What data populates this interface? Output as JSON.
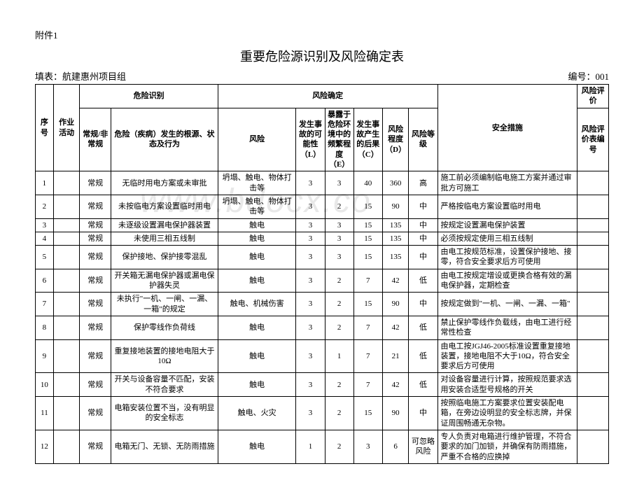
{
  "attachment": "附件1",
  "title": "重要危险源识别及风险确定表",
  "fillLabel": "填表：航建惠州项目组",
  "docNumber": "编号：001",
  "watermark": "www.bdocx.co",
  "headers": {
    "seq": "序号",
    "activity": "作业活动",
    "identification": "危险识别",
    "regular": "常规/非常规",
    "source": "危险（疾病）发生的根源、状态及行为",
    "riskDetermination": "风险确定",
    "risk": "风险",
    "l": "发生事故的可能性（L）",
    "e": "暴露于危险环境中的频繁程度（E）",
    "c": "发生事故产生的后果（C）",
    "d": "风险程度（D）",
    "level": "风险等级",
    "measure": "安全措施",
    "evaluation": "风险评价",
    "evalNum": "风险评价表编号"
  },
  "rows": [
    {
      "seq": "1",
      "regular": "常规",
      "source": "无临时用电方案或未审批",
      "risk": "坍塌、触电、物体打击等",
      "l": "3",
      "e": "3",
      "c": "40",
      "d": "360",
      "level": "高",
      "measure": "施工前必须编制临电施工方案并通过审批方可施工"
    },
    {
      "seq": "2",
      "regular": "常规",
      "source": "未按临电方案设置临时用电",
      "risk": "坍塌、触电、物体打击等",
      "l": "3",
      "e": "2",
      "c": "15",
      "d": "90",
      "level": "中",
      "measure": "严格按临电方案设置临时用电"
    },
    {
      "seq": "3",
      "regular": "常规",
      "source": "未逐级设置漏电保护器装置",
      "risk": "触电",
      "l": "3",
      "e": "3",
      "c": "15",
      "d": "135",
      "level": "中",
      "measure": "按规定设置漏电保护装置"
    },
    {
      "seq": "4",
      "regular": "常规",
      "source": "未使用三相五线制",
      "risk": "触电",
      "l": "3",
      "e": "3",
      "c": "15",
      "d": "135",
      "level": "中",
      "measure": "必须按规定使用三相五线制"
    },
    {
      "seq": "5",
      "regular": "常规",
      "source": "保护接地、保护接零混乱",
      "risk": "触电",
      "l": "3",
      "e": "3",
      "c": "15",
      "d": "135",
      "level": "中",
      "measure": "由电工按规范标准，设置保护接地、接零，符合安全要求后方可使用"
    },
    {
      "seq": "6",
      "regular": "常规",
      "source": "开关箱无漏电保护器或漏电保护器失灵",
      "risk": "触电",
      "l": "3",
      "e": "2",
      "c": "7",
      "d": "42",
      "level": "低",
      "measure": "由电工按规定增设或更换合格有效的漏电保护器，定期检查"
    },
    {
      "seq": "7",
      "regular": "常规",
      "source": "未执行\"一机、一闸、一漏、一箱\"的规定",
      "risk": "触电、机械伤害",
      "l": "3",
      "e": "2",
      "c": "15",
      "d": "90",
      "level": "中",
      "measure": "按规定做到\"一机、一闸、一漏、一箱\""
    },
    {
      "seq": "8",
      "regular": "常规",
      "source": "保护零线作负荷线",
      "risk": "触电",
      "l": "3",
      "e": "2",
      "c": "7",
      "d": "42",
      "level": "低",
      "measure": "禁止保护零线作负载线，由电工进行经常性检查"
    },
    {
      "seq": "9",
      "regular": "常规",
      "source": "重复接地装置的接地电阻大于10Ω",
      "risk": "触电",
      "l": "3",
      "e": "1",
      "c": "7",
      "d": "21",
      "level": "低",
      "measure": "由电工按JGJ46-2005标准设置重复接地装置，接地电阻不大于10Ω，符合安全要求后方可使用"
    },
    {
      "seq": "10",
      "regular": "常规",
      "source": "开关与设备容量不匹配，安装不符合要求",
      "risk": "触电",
      "l": "3",
      "e": "2",
      "c": "7",
      "d": "42",
      "level": "低",
      "measure": "对设备容量进行计算，按照规范要求选用安装合适型号规格的开关"
    },
    {
      "seq": "11",
      "regular": "常规",
      "source": "电箱安装位置不当，没有明显的安全标志",
      "risk": "触电、火灾",
      "l": "3",
      "e": "2",
      "c": "15",
      "d": "90",
      "level": "中",
      "measure": "按照临电施工方案要求位置安装配电箱，在旁边设明显的安全标志牌，并保证周围畅通无杂物。"
    },
    {
      "seq": "12",
      "regular": "常规",
      "source": "电箱无门、无锁、无防雨措施",
      "risk": "触电",
      "l": "1",
      "e": "2",
      "c": "3",
      "d": "6",
      "level": "可忽略风险",
      "measure": "专人负责对电箱进行维护管理，不符合要求的加门加锁，并确保有防雨措施，严重不合格的应换掉"
    }
  ]
}
